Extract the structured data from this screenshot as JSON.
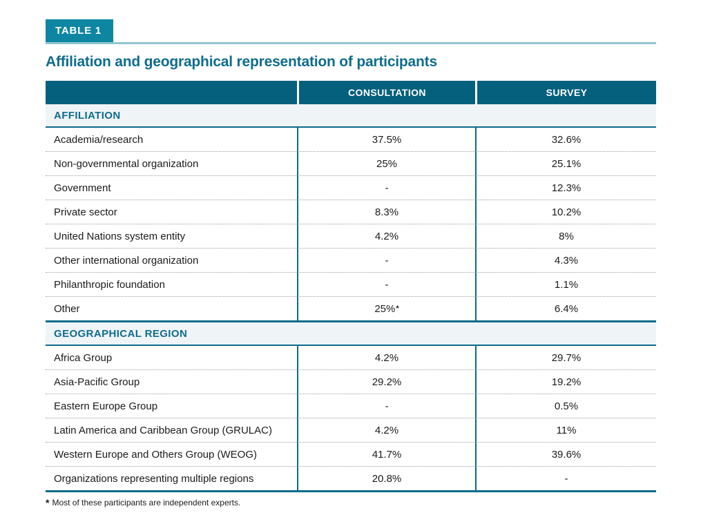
{
  "page": {
    "table_tag": "TABLE 1",
    "title": "Affiliation and geographical representation of participants",
    "footnote_marker": "*",
    "footnote_text": "Most of these participants are independent experts."
  },
  "table": {
    "columns": [
      "",
      "CONSULTATION",
      "SURVEY"
    ],
    "sections": [
      {
        "header": "AFFILIATION",
        "rows": [
          {
            "label": "Academia/research",
            "consultation": "37.5%",
            "survey": "32.6%"
          },
          {
            "label": "Non-governmental organization",
            "consultation": "25%",
            "survey": "25.1%"
          },
          {
            "label": "Government",
            "consultation": "-",
            "survey": "12.3%"
          },
          {
            "label": "Private sector",
            "consultation": "8.3%",
            "survey": "10.2%"
          },
          {
            "label": "United Nations system entity",
            "consultation": "4.2%",
            "survey": "8%"
          },
          {
            "label": "Other international organization",
            "consultation": "-",
            "survey": "4.3%"
          },
          {
            "label": "Philanthropic foundation",
            "consultation": "-",
            "survey": "1.1%"
          },
          {
            "label": "Other",
            "consultation": "25%*",
            "survey": "6.4%"
          }
        ]
      },
      {
        "header": "GEOGRAPHICAL REGION",
        "rows": [
          {
            "label": "Africa Group",
            "consultation": "4.2%",
            "survey": "29.7%"
          },
          {
            "label": "Asia-Pacific Group",
            "consultation": "29.2%",
            "survey": "19.2%"
          },
          {
            "label": "Eastern Europe Group",
            "consultation": "-",
            "survey": "0.5%"
          },
          {
            "label": "Latin America and Caribbean Group (GRULAC)",
            "consultation": "4.2%",
            "survey": "11%"
          },
          {
            "label": "Western Europe and Others Group (WEOG)",
            "consultation": "41.7%",
            "survey": "39.6%"
          },
          {
            "label": "Organizations representing multiple regions",
            "consultation": "20.8%",
            "survey": "-"
          }
        ]
      }
    ]
  },
  "colors": {
    "table_tag_background": "#0e86a2",
    "tag_underline": "#8fc6d3",
    "header_row_background": "#05607e",
    "header_row_text": "#ffffff",
    "section_row_background": "#eff4f7",
    "teal_text": "#0e6c8c",
    "divider_teal": "#0b6a89",
    "body_text": "#1a1a1a"
  }
}
